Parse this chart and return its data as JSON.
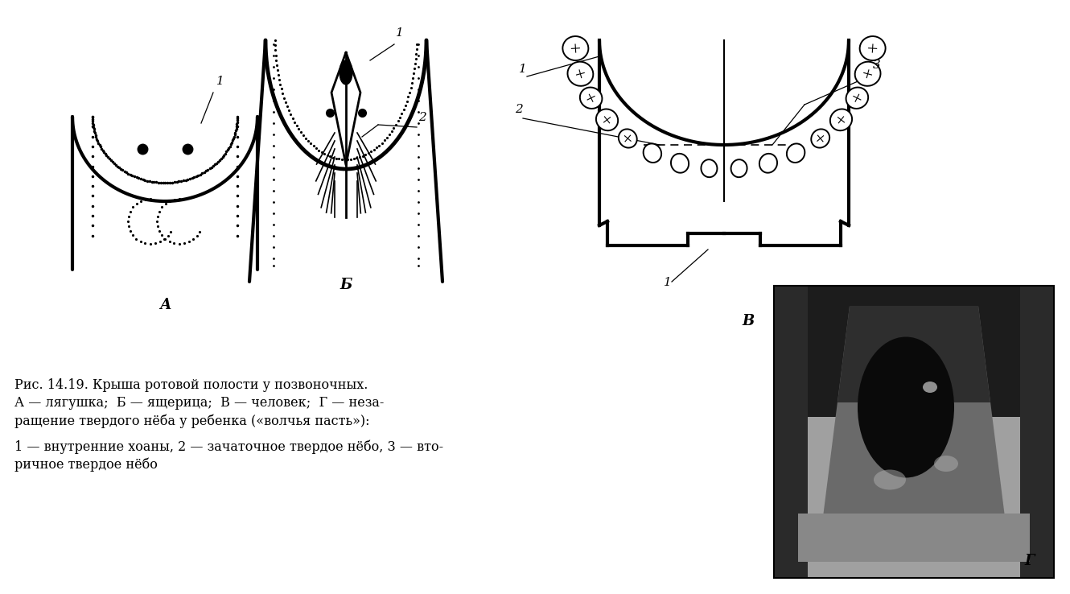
{
  "bg_color": "#ffffff",
  "caption_line1": "Рис. 14.19. Крыша ротовой полости у позвоночных.",
  "caption_line2": "А — лягушка;  Б — ящерица;  В — человек;  Г — неза-",
  "caption_line3": "ращение твердого нёба у ребенка («волчья пасть»):",
  "caption_line4": "1 — внутренние хоаны, 2 — зачаточное твердое нёбо, 3 — вто-",
  "caption_line5": "ричное твердое нёбо",
  "label_A": "А",
  "label_B": "Б",
  "label_C": "В",
  "label_D": "Г"
}
